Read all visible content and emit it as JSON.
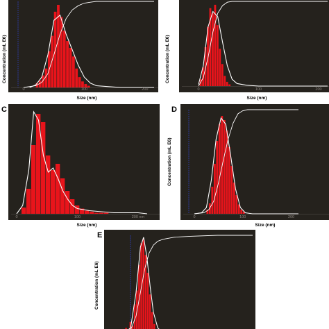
{
  "figure": {
    "panels": [
      {
        "letter": "",
        "xlabel": "Size (nm)",
        "ylabel": "Concentration (mL E6)"
      },
      {
        "letter": "",
        "xlabel": "Size (nm)",
        "ylabel": "Concentration (mL E6)"
      },
      {
        "letter": "C",
        "xlabel": "Size (nm)",
        "ylabel": "Concentration (mL E6)"
      },
      {
        "letter": "D",
        "xlabel": "Size (nm)",
        "ylabel": "Concentration (mL E6)"
      },
      {
        "letter": "E",
        "xlabel": "",
        "ylabel": "Concentration (mL E6)"
      }
    ]
  },
  "chart_data": [
    {
      "type": "bar",
      "xlabel": "Size (nm)",
      "ylabel": "Concentration (mL E6)",
      "xlim": [
        -10,
        215
      ],
      "xticks": [
        "0",
        "100",
        "200"
      ],
      "bar_color": "#e8141b",
      "curve_color": "#ffffff",
      "histogram": {
        "bin_width": 5,
        "x": [
          20,
          25,
          30,
          35,
          40,
          45,
          50,
          55,
          60,
          65,
          70,
          75,
          80,
          85,
          90,
          95,
          100,
          105
        ],
        "values": [
          5,
          8,
          14,
          22,
          42,
          60,
          88,
          96,
          82,
          66,
          54,
          46,
          36,
          22,
          12,
          7,
          4,
          2
        ]
      },
      "smoothed_curve": {
        "x": [
          10,
          20,
          30,
          40,
          50,
          60,
          70,
          80,
          90,
          100,
          110,
          120,
          140,
          160,
          180,
          200,
          215
        ],
        "values": [
          0,
          3,
          12,
          38,
          78,
          84,
          62,
          44,
          26,
          12,
          5,
          2,
          1,
          0,
          0,
          0,
          0
        ]
      },
      "cumulative_curve": {
        "x": [
          0,
          20,
          30,
          40,
          50,
          60,
          70,
          80,
          90,
          100,
          110,
          120,
          140,
          160,
          200,
          215
        ],
        "values": [
          0,
          2,
          6,
          16,
          38,
          62,
          80,
          90,
          95,
          98,
          99,
          100,
          100,
          100,
          100,
          100
        ]
      }
    },
    {
      "type": "bar",
      "xlabel": "Size (nm)",
      "ylabel": "Concentration (mL E6)",
      "xlim": [
        -10,
        215
      ],
      "xticks": [
        "0",
        "100",
        "200"
      ],
      "bar_color": "#e8141b",
      "curve_color": "#ffffff",
      "histogram": {
        "bin_width": 4,
        "x": [
          2,
          6,
          10,
          14,
          18,
          22,
          26,
          30,
          34,
          38,
          42,
          46,
          50
        ],
        "values": [
          8,
          22,
          46,
          70,
          92,
          86,
          96,
          72,
          44,
          26,
          12,
          5,
          2
        ]
      },
      "smoothed_curve": {
        "x": [
          0,
          8,
          16,
          24,
          32,
          40,
          48,
          56,
          64,
          80,
          100,
          150,
          215
        ],
        "values": [
          2,
          24,
          70,
          88,
          82,
          52,
          24,
          8,
          3,
          1,
          0,
          0,
          0
        ]
      },
      "cumulative_curve": {
        "x": [
          0,
          8,
          16,
          24,
          32,
          40,
          48,
          56,
          70,
          100,
          215
        ],
        "values": [
          0,
          10,
          34,
          64,
          86,
          95,
          99,
          100,
          100,
          100,
          100
        ]
      }
    },
    {
      "type": "bar",
      "xlabel": "Size (nm)",
      "ylabel": "",
      "xlim": [
        -15,
        215
      ],
      "xticks": [
        "0",
        "100",
        "200 nm"
      ],
      "bar_color": "#e8141b",
      "curve_color": "#ffffff",
      "histogram": {
        "bin_width": 8,
        "x": [
          8,
          16,
          24,
          32,
          40,
          48,
          56,
          64,
          72,
          80,
          88,
          96,
          104,
          112,
          120,
          128,
          136,
          144
        ],
        "values": [
          6,
          24,
          66,
          96,
          88,
          56,
          42,
          48,
          34,
          22,
          14,
          8,
          5,
          3,
          2,
          1,
          1,
          1
        ]
      },
      "smoothed_curve": {
        "x": [
          0,
          10,
          20,
          28,
          36,
          44,
          52,
          60,
          68,
          76,
          84,
          92,
          100,
          120,
          140,
          160,
          180,
          200,
          215
        ],
        "values": [
          0,
          8,
          42,
          98,
          90,
          56,
          40,
          44,
          34,
          22,
          14,
          8,
          5,
          3,
          2,
          1,
          1,
          1,
          0
        ]
      }
    },
    {
      "type": "bar",
      "xlabel": "Size (nm)",
      "ylabel": "Concentration (mL E6)",
      "xlim": [
        -15,
        215
      ],
      "xticks": [
        "0",
        "100",
        "200"
      ],
      "bar_color": "#e8141b",
      "curve_color": "#ffffff",
      "histogram": {
        "bin_width": 5,
        "x": [
          25,
          30,
          35,
          40,
          45,
          50,
          55,
          60,
          65,
          70,
          75,
          80,
          85,
          90,
          95,
          100
        ],
        "values": [
          4,
          10,
          26,
          48,
          70,
          86,
          94,
          90,
          80,
          64,
          46,
          30,
          18,
          9,
          4,
          2
        ]
      },
      "smoothed_curve": {
        "x": [
          0,
          15,
          25,
          35,
          45,
          55,
          65,
          75,
          85,
          95,
          105,
          120,
          215
        ],
        "values": [
          0,
          1,
          6,
          32,
          72,
          92,
          86,
          56,
          24,
          6,
          1,
          0,
          0
        ]
      },
      "cumulative_curve": {
        "x": [
          0,
          20,
          30,
          40,
          50,
          60,
          70,
          80,
          90,
          100,
          110,
          120,
          150,
          215
        ],
        "values": [
          0,
          1,
          4,
          12,
          30,
          52,
          72,
          87,
          96,
          99,
          100,
          100,
          100,
          100
        ]
      }
    },
    {
      "type": "bar",
      "xlabel": "",
      "ylabel": "Concentration (mL E6)",
      "xlim": [
        -25,
        215
      ],
      "xticks": [],
      "bar_color": "#e8141b",
      "curve_color": "#ffffff",
      "histogram": {
        "bin_width": 4,
        "x": [
          -20,
          -16,
          -12,
          -8,
          -4,
          0,
          4,
          8,
          12,
          16,
          20,
          24,
          28,
          32
        ],
        "values": [
          6,
          4,
          12,
          8,
          30,
          44,
          70,
          92,
          96,
          80,
          62,
          40,
          22,
          10
        ]
      },
      "smoothed_curve": {
        "x": [
          -25,
          -10,
          0,
          8,
          14,
          20,
          26,
          32,
          40,
          50,
          215
        ],
        "values": [
          0,
          6,
          42,
          88,
          98,
          78,
          48,
          22,
          6,
          1,
          0
        ]
      },
      "cumulative_curve": {
        "x": [
          -25,
          -10,
          0,
          8,
          16,
          24,
          32,
          40,
          50,
          70,
          100,
          150,
          215
        ],
        "values": [
          0,
          4,
          18,
          42,
          66,
          82,
          90,
          94,
          96,
          98,
          99,
          100,
          100
        ]
      }
    }
  ]
}
